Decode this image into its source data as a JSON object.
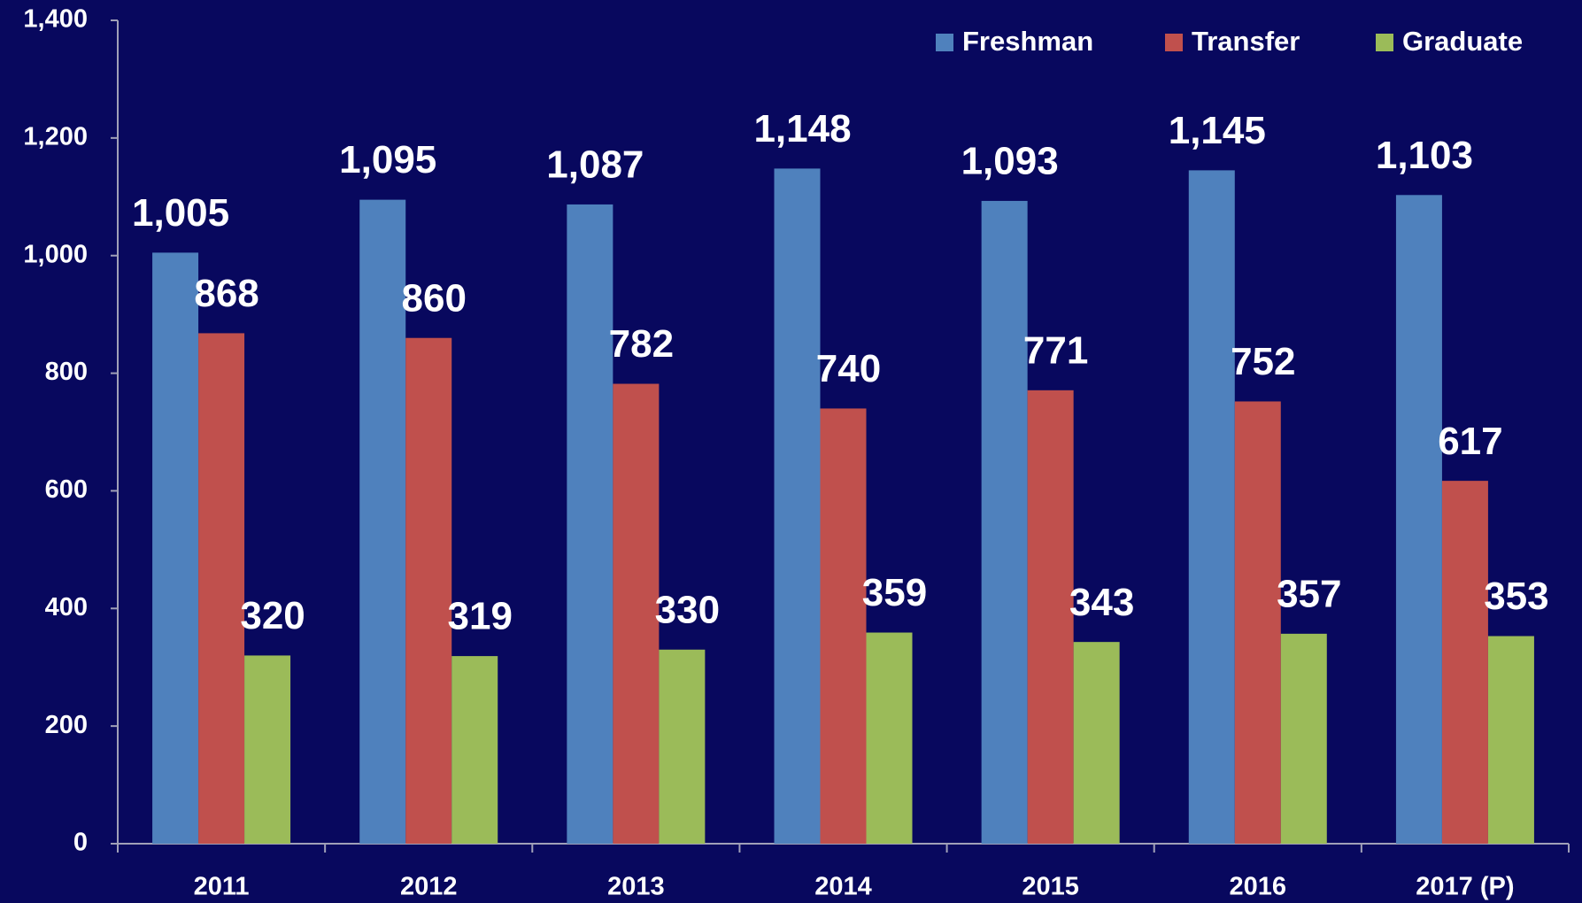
{
  "chart_data": {
    "type": "bar",
    "categories": [
      "2011",
      "2012",
      "2013",
      "2014",
      "2015",
      "2016",
      "2017 (P)"
    ],
    "series": [
      {
        "name": "Freshman",
        "color": "#4f81bd",
        "values": [
          1005,
          1095,
          1087,
          1148,
          1093,
          1145,
          1103
        ],
        "value_labels": [
          "1,005",
          "1,095",
          "1,087",
          "1,148",
          "1,093",
          "1,145",
          "1,103"
        ]
      },
      {
        "name": "Transfer",
        "color": "#c0504d",
        "values": [
          868,
          860,
          782,
          740,
          771,
          752,
          617
        ]
      },
      {
        "name": "Graduate",
        "color": "#9bbb59",
        "values": [
          320,
          319,
          330,
          359,
          343,
          357,
          353
        ]
      }
    ],
    "ylim": [
      0,
      1400
    ],
    "yticks": [
      0,
      200,
      400,
      600,
      800,
      {
        "value": 1000,
        "label": "1,000"
      },
      {
        "value": 1200,
        "label": "1,200"
      },
      {
        "value": 1400,
        "label": "1,400"
      }
    ],
    "grid": false,
    "legend": "top-right"
  }
}
